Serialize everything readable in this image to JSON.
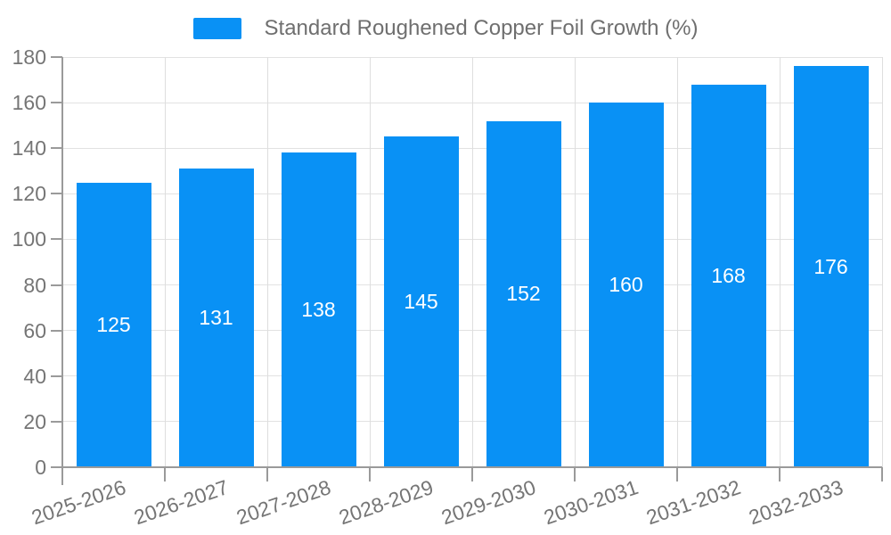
{
  "legend": {
    "label": "Standard Roughened Copper Foil Growth (%)"
  },
  "chart_data": {
    "type": "bar",
    "title": "Standard Roughened Copper Foil Growth (%)",
    "categories": [
      "2025-2026",
      "2026-2027",
      "2027-2028",
      "2028-2029",
      "2029-2030",
      "2030-2031",
      "2031-2032",
      "2032-2033"
    ],
    "series": [
      {
        "name": "Standard Roughened Copper Foil Growth (%)",
        "values": [
          125,
          131,
          138,
          145,
          152,
          160,
          168,
          176
        ]
      }
    ],
    "values": [
      125,
      131,
      138,
      145,
      152,
      160,
      168,
      176
    ],
    "value_labels": [
      "125",
      "131",
      "138",
      "145",
      "152",
      "160",
      "168",
      "176"
    ],
    "xlabel": "",
    "ylabel": "",
    "ylim": [
      0,
      180
    ],
    "yticks": [
      0,
      20,
      40,
      60,
      80,
      100,
      120,
      140,
      160,
      180
    ],
    "grid": true,
    "legend_position": "top-center",
    "x_label_rotation_deg": -19,
    "colors": {
      "bar": "#0991f5",
      "value_label": "#ffffff",
      "axis": "#9a9a9a",
      "gridline": "#e2e2e2",
      "tick_text": "#757575",
      "legend_text": "#6f6f6f",
      "background": "#ffffff"
    }
  }
}
